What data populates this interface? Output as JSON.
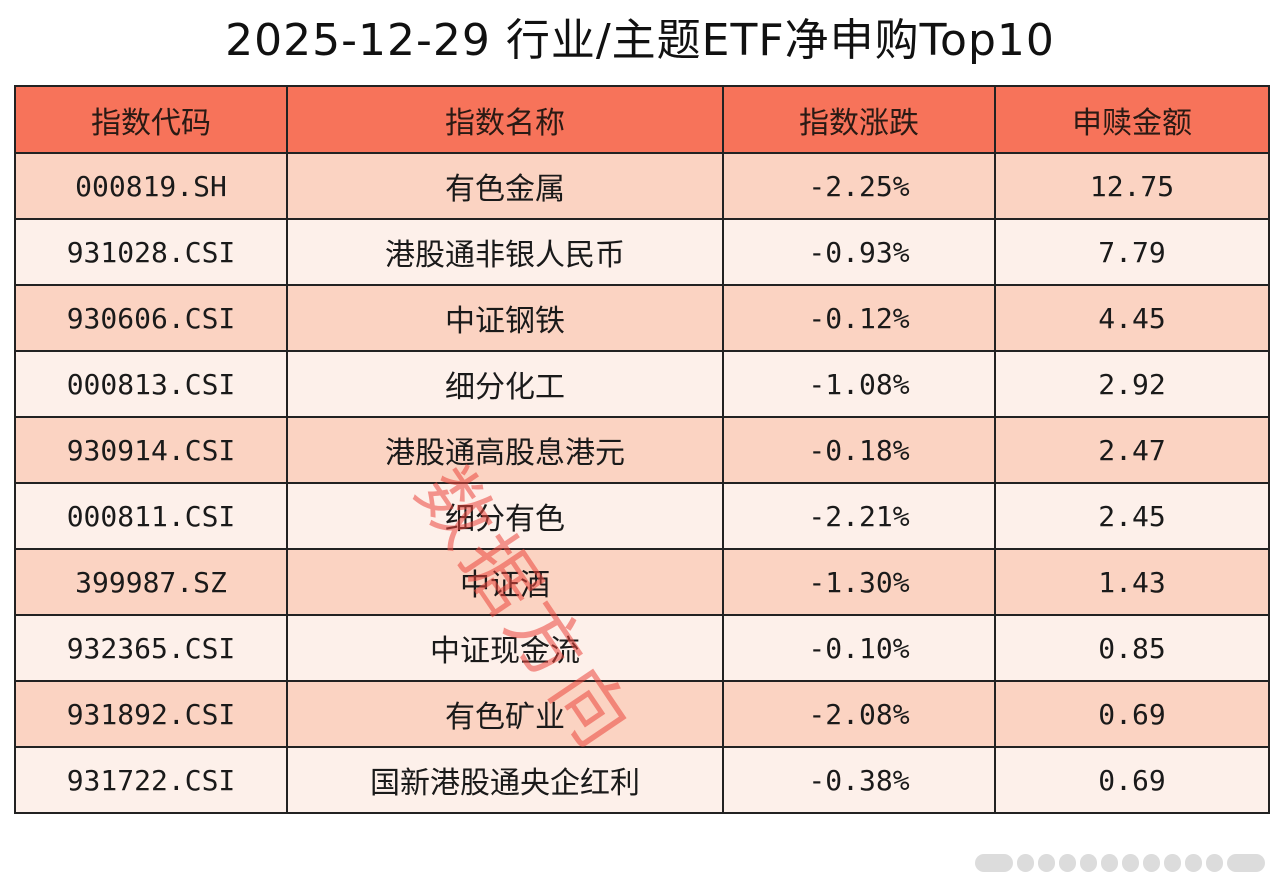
{
  "title": "2025-12-29 行业/主题ETF净申购Top10",
  "table": {
    "headers": [
      "指数代码",
      "指数名称",
      "指数涨跌",
      "申赎金额"
    ],
    "rows": [
      {
        "code": "000819.SH",
        "name": "有色金属",
        "change": "-2.25%",
        "amount": "12.75"
      },
      {
        "code": "931028.CSI",
        "name": "港股通非银人民币",
        "change": "-0.93%",
        "amount": "7.79"
      },
      {
        "code": "930606.CSI",
        "name": "中证钢铁",
        "change": "-0.12%",
        "amount": "4.45"
      },
      {
        "code": "000813.CSI",
        "name": "细分化工",
        "change": "-1.08%",
        "amount": "2.92"
      },
      {
        "code": "930914.CSI",
        "name": "港股通高股息港元",
        "change": "-0.18%",
        "amount": "2.47"
      },
      {
        "code": "000811.CSI",
        "name": "细分有色",
        "change": "-2.21%",
        "amount": "2.45"
      },
      {
        "code": "399987.SZ",
        "name": "中证酒",
        "change": "-1.30%",
        "amount": "1.43"
      },
      {
        "code": "932365.CSI",
        "name": "中证现金流",
        "change": "-0.10%",
        "amount": "0.85"
      },
      {
        "code": "931892.CSI",
        "name": "有色矿业",
        "change": "-2.08%",
        "amount": "0.69"
      },
      {
        "code": "931722.CSI",
        "name": "国新港股通央企红利",
        "change": "-0.38%",
        "amount": "0.69"
      }
    ]
  },
  "watermark": "数据方向",
  "colors": {
    "header_bg": "#f7735a",
    "row_odd_bg": "#fbd3c2",
    "row_even_bg": "#fdf0ea",
    "watermark": "#eb463c"
  }
}
